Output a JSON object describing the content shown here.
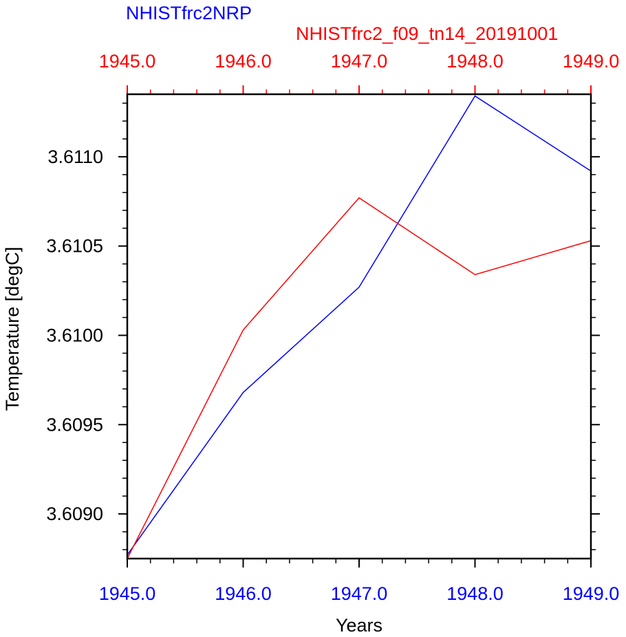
{
  "chart_data": {
    "type": "line",
    "title_series_1": "NHISTfrc2NRP",
    "title_series_2": "NHISTfrc2_f09_tn14_20191001",
    "xlabel": "Years",
    "ylabel": "Temperature [degC]",
    "x": [
      1945.0,
      1946.0,
      1947.0,
      1948.0,
      1949.0
    ],
    "x_tick_labels": [
      "1945.0",
      "1946.0",
      "1947.0",
      "1948.0",
      "1949.0"
    ],
    "y_tick_labels": [
      "3.6090",
      "3.6095",
      "3.6100",
      "3.6105",
      "3.6110"
    ],
    "y_ticks": [
      3.609,
      3.6095,
      3.61,
      3.6105,
      3.611
    ],
    "xlim": [
      1945.0,
      1949.0
    ],
    "ylim": [
      3.60875,
      3.61135
    ],
    "grid": false,
    "series": [
      {
        "name": "NHISTfrc2NRP",
        "color": "#0000ff",
        "values": [
          3.60877,
          3.60968,
          3.61027,
          3.61134,
          3.61092
        ]
      },
      {
        "name": "NHISTfrc2_f09_tn14_20191001",
        "color": "#ff0000",
        "values": [
          3.60875,
          3.61003,
          3.61077,
          3.61034,
          3.61053
        ]
      }
    ],
    "colors": {
      "axis": "#000000",
      "bottom_axis_labels": "#0000ff",
      "top_axis_labels": "#ff0000"
    }
  }
}
